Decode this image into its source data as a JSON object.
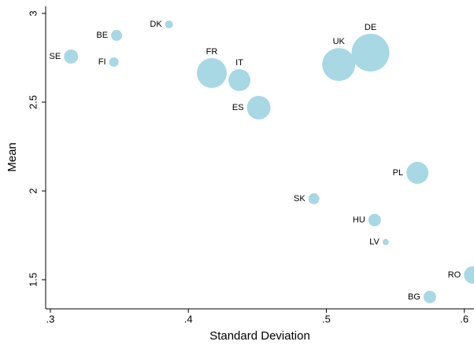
{
  "chart_data": {
    "type": "scatter",
    "xlabel": "Standard Deviation",
    "ylabel": "Mean",
    "labels": [
      "SE",
      "BE",
      "DK",
      "FI",
      "FR",
      "IT",
      "ES",
      "UK",
      "DE",
      "PL",
      "SK",
      "HU",
      "LV",
      "RO",
      "BG"
    ],
    "x": [
      0.315,
      0.348,
      0.386,
      0.346,
      0.417,
      0.437,
      0.451,
      0.509,
      0.532,
      0.566,
      0.491,
      0.535,
      0.543,
      0.606,
      0.575
    ],
    "values": [
      2.757,
      2.876,
      2.938,
      2.726,
      2.664,
      2.624,
      2.469,
      2.712,
      2.779,
      2.102,
      1.956,
      1.836,
      1.712,
      1.527,
      1.403
    ],
    "sizes": [
      9,
      7,
      5,
      6,
      19,
      14,
      15,
      21,
      24,
      14,
      7,
      8,
      4,
      11,
      8
    ],
    "color": "#a8d8e4",
    "xlim": [
      0.2966,
      0.607
    ],
    "ylim": [
      1.336,
      3.04
    ],
    "xticks": [
      {
        "value": 0.3,
        "label": ".3"
      },
      {
        "value": 0.4,
        "label": ".4"
      },
      {
        "value": 0.5,
        "label": ".5"
      },
      {
        "value": 0.6,
        "label": ".6"
      }
    ],
    "yticks": [
      1.5,
      2,
      2.5,
      3
    ]
  }
}
